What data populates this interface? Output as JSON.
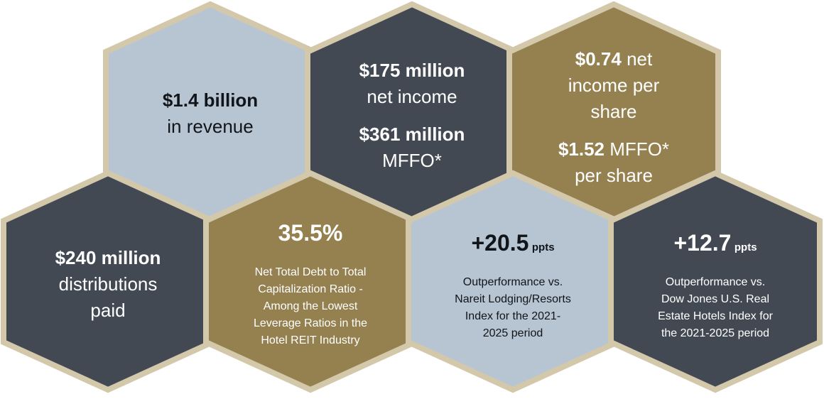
{
  "colors": {
    "border": "#d4c8ab",
    "light_blue": "#b7c5d3",
    "slate": "#424953",
    "gold": "#95804f"
  },
  "revenue": {
    "value": "$1.4 billion",
    "label": "in revenue"
  },
  "net_income": {
    "value": "$175 million",
    "label": "net income",
    "mffo_value": "$361 million",
    "mffo_label": "MFFO*"
  },
  "per_share": {
    "ni_value": "$0.74",
    "ni_label_line1": "net",
    "ni_label_line2": "income per",
    "ni_label_line3": "share",
    "mffo_value": "$1.52",
    "mffo_label": "MFFO*",
    "mffo_label_line2": "per share"
  },
  "distributions": {
    "value": "$240 million",
    "label_line1": "distributions",
    "label_line2": "paid"
  },
  "leverage": {
    "value": "35.5%",
    "desc_line1": "Net Total Debt to Total",
    "desc_line2": "Capitalization Ratio -",
    "desc_line3": "Among the Lowest",
    "desc_line4": "Leverage Ratios in the",
    "desc_line5": "Hotel REIT Industry"
  },
  "nareit": {
    "value": "+20.5",
    "unit": "ppts",
    "desc_line1": "Outperformance vs.",
    "desc_line2": "Nareit Lodging/Resorts",
    "desc_line3": "Index for the 2021-",
    "desc_line4": "2025 period"
  },
  "dowjones": {
    "value": "+12.7",
    "unit": "ppts",
    "desc_line1": "Outperformance vs.",
    "desc_line2": "Dow Jones U.S. Real",
    "desc_line3": "Estate Hotels Index for",
    "desc_line4": "the 2021-2025 period"
  }
}
